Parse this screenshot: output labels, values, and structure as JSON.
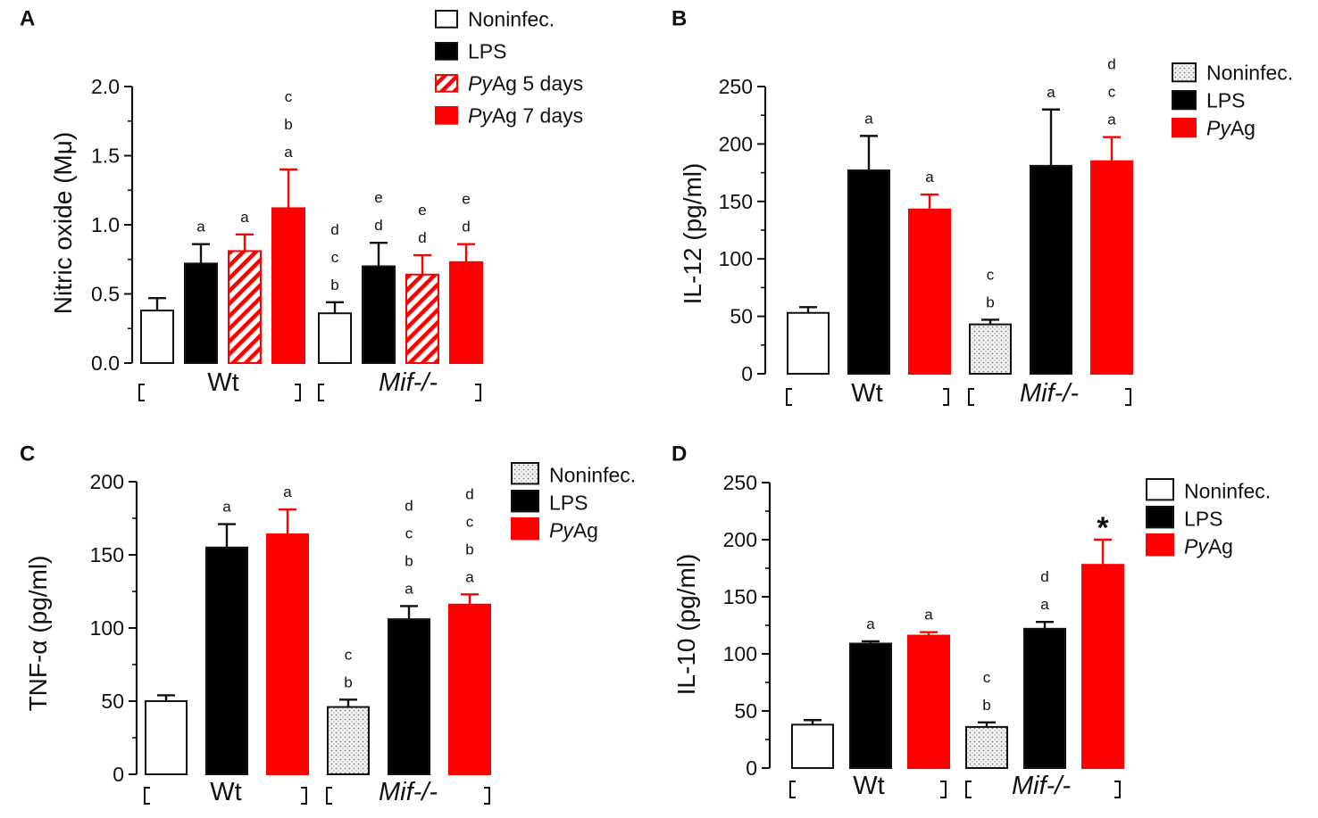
{
  "colors": {
    "lps": "#000000",
    "pyag": "#ff0000",
    "noninfec": "#ffffff",
    "axis": "#111111"
  },
  "chart_data": [
    {
      "panel": "A",
      "type": "bar",
      "ylabel": "Nitric oxide (Mμ)",
      "ylim": [
        0,
        2.0
      ],
      "yticks": [
        "0.0",
        "0.5",
        "1.0",
        "1.5",
        "2.0"
      ],
      "groups": [
        "Wt",
        "Mif-/-"
      ],
      "legend": [
        {
          "pre": "",
          "em": "",
          "post": "Noninfec.",
          "style": "open"
        },
        {
          "pre": "",
          "em": "",
          "post": "LPS",
          "style": "black"
        },
        {
          "pre": "",
          "em": "Py",
          "post": "Ag 5 days",
          "style": "hatch"
        },
        {
          "pre": "",
          "em": "Py",
          "post": "Ag 7 days",
          "style": "red"
        }
      ],
      "series": [
        {
          "name": "Noninfec.",
          "style": "open",
          "values": [
            0.38,
            0.36
          ],
          "errors": [
            0.09,
            0.08
          ],
          "sig": [
            [],
            [
              "b",
              "c",
              "d"
            ]
          ]
        },
        {
          "name": "LPS",
          "style": "black",
          "values": [
            0.72,
            0.7
          ],
          "errors": [
            0.14,
            0.17
          ],
          "sig": [
            [
              "a"
            ],
            [
              "d",
              "e"
            ]
          ]
        },
        {
          "name": "PyAg 5 days",
          "style": "hatch",
          "values": [
            0.81,
            0.64
          ],
          "errors": [
            0.12,
            0.14
          ],
          "sig": [
            [
              "a"
            ],
            [
              "d",
              "e"
            ]
          ]
        },
        {
          "name": "PyAg 7 days",
          "style": "red",
          "values": [
            1.12,
            0.73
          ],
          "errors": [
            0.28,
            0.13
          ],
          "sig": [
            [
              "a",
              "b",
              "c"
            ],
            [
              "d",
              "e"
            ]
          ]
        }
      ]
    },
    {
      "panel": "B",
      "type": "bar",
      "ylabel": "IL-12 (pg/ml)",
      "ylim": [
        0,
        250
      ],
      "yticks": [
        "0",
        "50",
        "100",
        "150",
        "200",
        "250"
      ],
      "groups": [
        "Wt",
        "Mif-/-"
      ],
      "legend": [
        {
          "pre": "",
          "em": "",
          "post": "Noninfec.",
          "style": "dots"
        },
        {
          "pre": "",
          "em": "",
          "post": "LPS",
          "style": "black"
        },
        {
          "pre": "",
          "em": "Py",
          "post": "Ag",
          "style": "red"
        }
      ],
      "series": [
        {
          "name": "Noninfec.",
          "style": "open",
          "style2": "dots",
          "values": [
            53,
            43
          ],
          "errors": [
            5,
            4
          ],
          "sig": [
            [],
            [
              "b",
              "c"
            ]
          ]
        },
        {
          "name": "LPS",
          "style": "black",
          "values": [
            177,
            181
          ],
          "errors": [
            30,
            49
          ],
          "sig": [
            [
              "a"
            ],
            [
              "a"
            ]
          ]
        },
        {
          "name": "PyAg",
          "style": "red",
          "values": [
            143,
            185
          ],
          "errors": [
            13,
            21
          ],
          "sig": [
            [
              "a"
            ],
            [
              "a",
              "c",
              "d"
            ]
          ]
        }
      ]
    },
    {
      "panel": "C",
      "type": "bar",
      "ylabel": "TNF-α (pg/ml)",
      "ylim": [
        0,
        200
      ],
      "yticks": [
        "0",
        "50",
        "100",
        "150",
        "200"
      ],
      "groups": [
        "Wt",
        "Mif-/-"
      ],
      "legend": [
        {
          "pre": "",
          "em": "",
          "post": "Noninfec.",
          "style": "dots"
        },
        {
          "pre": "",
          "em": "",
          "post": "LPS",
          "style": "black"
        },
        {
          "pre": "",
          "em": "Py",
          "post": "Ag",
          "style": "red"
        }
      ],
      "series": [
        {
          "name": "Noninfec.",
          "style": "open",
          "style2": "dots",
          "values": [
            50,
            46
          ],
          "errors": [
            4,
            5
          ],
          "sig": [
            [],
            [
              "b",
              "c"
            ]
          ]
        },
        {
          "name": "LPS",
          "style": "black",
          "values": [
            155,
            106
          ],
          "errors": [
            16,
            9
          ],
          "sig": [
            [
              "a"
            ],
            [
              "a",
              "b",
              "c",
              "d"
            ]
          ]
        },
        {
          "name": "PyAg",
          "style": "red",
          "values": [
            164,
            116
          ],
          "errors": [
            17,
            7
          ],
          "sig": [
            [
              "a"
            ],
            [
              "a",
              "b",
              "c",
              "d"
            ]
          ]
        }
      ]
    },
    {
      "panel": "D",
      "type": "bar",
      "ylabel": "IL-10 (pg/ml)",
      "ylim": [
        0,
        250
      ],
      "yticks": [
        "0",
        "50",
        "100",
        "150",
        "200",
        "250"
      ],
      "groups": [
        "Wt",
        "Mif-/-"
      ],
      "legend": [
        {
          "pre": "",
          "em": "",
          "post": "Noninfec.",
          "style": "open"
        },
        {
          "pre": "",
          "em": "",
          "post": "LPS",
          "style": "black"
        },
        {
          "pre": "",
          "em": "Py",
          "post": "Ag",
          "style": "red"
        }
      ],
      "series": [
        {
          "name": "Noninfec.",
          "style": "open",
          "style2": "dots",
          "values": [
            38,
            36
          ],
          "errors": [
            4,
            4
          ],
          "sig": [
            [],
            [
              "b",
              "c"
            ]
          ]
        },
        {
          "name": "LPS",
          "style": "black",
          "values": [
            109,
            122
          ],
          "errors": [
            2,
            6
          ],
          "sig": [
            [
              "a"
            ],
            [
              "a",
              "d"
            ]
          ]
        },
        {
          "name": "PyAg",
          "style": "red",
          "values": [
            116,
            178
          ],
          "errors": [
            3,
            22
          ],
          "sig": [
            [
              "a"
            ],
            [
              "*"
            ]
          ]
        }
      ]
    }
  ]
}
